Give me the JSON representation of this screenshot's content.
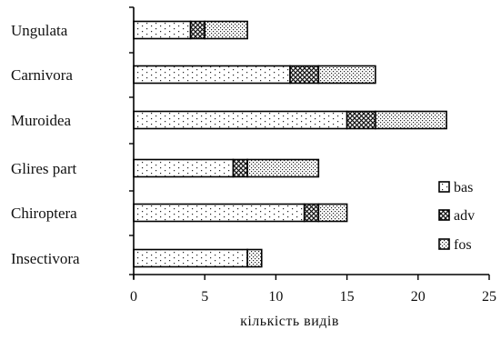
{
  "chart_data": {
    "type": "bar",
    "orientation": "horizontal",
    "stacked": true,
    "categories": [
      "Ungulata",
      "Carnivora",
      "Muroidea",
      "Glires part",
      "Chiroptera",
      "Insectivora"
    ],
    "series": [
      {
        "name": "bas",
        "values": [
          4,
          11,
          15,
          7,
          12,
          8
        ]
      },
      {
        "name": "adv",
        "values": [
          1,
          2,
          2,
          1,
          1,
          0
        ]
      },
      {
        "name": "fos",
        "values": [
          3,
          4,
          5,
          5,
          2,
          1
        ]
      }
    ],
    "xlabel": "кількість видів",
    "xlim": [
      0,
      25
    ],
    "xticks": [
      "0",
      "5",
      "10",
      "15",
      "20",
      "25"
    ],
    "grid": false,
    "legend_position": "right"
  }
}
